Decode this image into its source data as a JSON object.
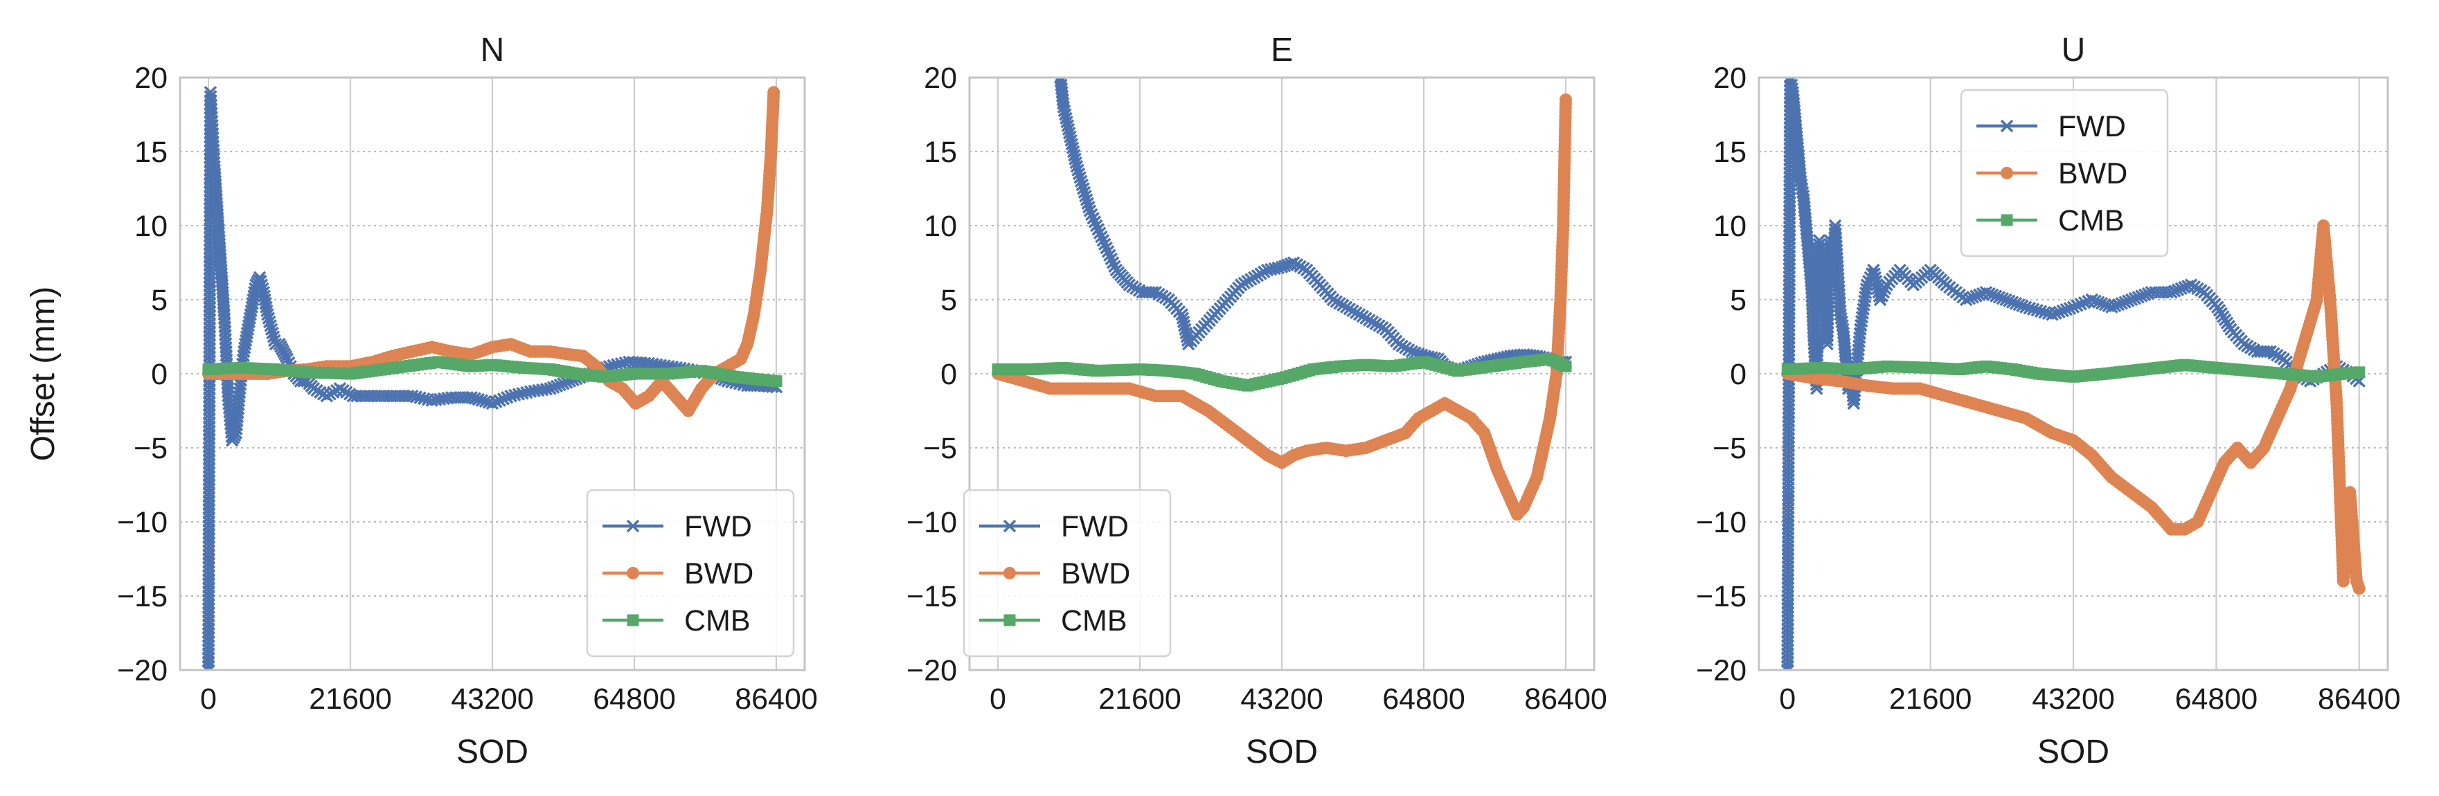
{
  "chart_data": [
    {
      "type": "line",
      "title": "N",
      "xlabel": "SOD",
      "ylabel": "Offset (mm)",
      "xlim": [
        -4320,
        90720
      ],
      "ylim": [
        -20,
        20
      ],
      "xticks": [
        0,
        21600,
        43200,
        64800,
        86400
      ],
      "xtick_labels": [
        "0",
        "21600",
        "43200",
        "64800",
        "86400"
      ],
      "yticks": [
        20,
        15,
        10,
        5,
        0,
        -5,
        -10,
        -15,
        -20
      ],
      "ytick_labels": [
        "20",
        "15",
        "10",
        "5",
        "0",
        "−5",
        "−10",
        "−15",
        "−20"
      ],
      "legend_loc": "lower-right",
      "series": [
        {
          "name": "FWD",
          "color": "#4c72b0",
          "marker": "x",
          "x": [
            0,
            300,
            600,
            900,
            1200,
            1500,
            1800,
            2100,
            2400,
            2700,
            3000,
            3600,
            4200,
            4800,
            5400,
            6000,
            6600,
            7200,
            7800,
            8400,
            9000,
            9600,
            10200,
            10800,
            11400,
            12000,
            13000,
            14000,
            15000,
            16000,
            18000,
            20000,
            22000,
            25000,
            28000,
            31000,
            34000,
            37000,
            40000,
            43200,
            46000,
            49000,
            52000,
            55000,
            58000,
            61000,
            64000,
            67000,
            70000,
            73000,
            76000,
            79000,
            82000,
            84000,
            86400
          ],
          "y": [
            -20,
            19,
            16.5,
            14,
            12,
            10,
            8,
            6,
            4,
            1.5,
            -1.5,
            -4.5,
            -4,
            -1,
            1.5,
            3,
            4.5,
            6,
            6.5,
            5.5,
            4,
            3,
            2,
            2,
            1.5,
            1,
            0,
            -0.5,
            -0.5,
            -1,
            -1.5,
            -1,
            -1.5,
            -1.5,
            -1.5,
            -1.5,
            -1.8,
            -1.6,
            -1.6,
            -2,
            -1.5,
            -1.2,
            -1,
            -0.5,
            0,
            0.5,
            0.8,
            0.7,
            0.5,
            0.3,
            0,
            -0.5,
            -0.8,
            -0.8,
            -0.9
          ]
        },
        {
          "name": "BWD",
          "color": "#dd8452",
          "marker": "o",
          "x": [
            0,
            3000,
            6000,
            9000,
            12000,
            15000,
            18000,
            21600,
            25000,
            28000,
            31000,
            34000,
            37000,
            40000,
            43200,
            46000,
            49000,
            52000,
            55000,
            57000,
            59000,
            61000,
            63000,
            65000,
            67000,
            69000,
            71000,
            73000,
            75000,
            77000,
            79000,
            81000,
            82000,
            83000,
            84000,
            85000,
            85600,
            86000
          ],
          "y": [
            0,
            0,
            0,
            0,
            0.2,
            0.3,
            0.5,
            0.5,
            0.8,
            1.2,
            1.5,
            1.8,
            1.5,
            1.3,
            1.8,
            2,
            1.5,
            1.5,
            1.3,
            1.2,
            0.5,
            -0.5,
            -1,
            -2,
            -1.5,
            -0.5,
            -1.5,
            -2.5,
            -1,
            0,
            0.5,
            1,
            2,
            4,
            7,
            11,
            15,
            19
          ]
        },
        {
          "name": "CMB",
          "color": "#55a868",
          "marker": "s",
          "x": [
            0,
            5000,
            10000,
            15000,
            21600,
            25000,
            30000,
            35000,
            40000,
            43200,
            48000,
            52000,
            56000,
            60000,
            64800,
            70000,
            75000,
            80000,
            84000,
            86400
          ],
          "y": [
            0.3,
            0.4,
            0.3,
            0.1,
            0,
            0.2,
            0.5,
            0.8,
            0.5,
            0.6,
            0.4,
            0.3,
            0,
            -0.2,
            0,
            0,
            0.2,
            -0.2,
            -0.4,
            -0.5
          ]
        }
      ]
    },
    {
      "type": "line",
      "title": "E",
      "xlabel": "SOD",
      "ylabel": "",
      "xlim": [
        -4320,
        90720
      ],
      "ylim": [
        -20,
        20
      ],
      "xticks": [
        0,
        21600,
        43200,
        64800,
        86400
      ],
      "xtick_labels": [
        "0",
        "21600",
        "43200",
        "64800",
        "86400"
      ],
      "yticks": [
        20,
        15,
        10,
        5,
        0,
        -5,
        -10,
        -15,
        -20
      ],
      "ytick_labels": [
        "20",
        "15",
        "10",
        "5",
        "0",
        "−5",
        "−10",
        "−15",
        "−20"
      ],
      "legend_loc": "lower-left",
      "series": [
        {
          "name": "FWD",
          "color": "#4c72b0",
          "marker": "x",
          "x": [
            9500,
            10000,
            11000,
            12000,
            13000,
            14000,
            15000,
            16000,
            17000,
            18000,
            19000,
            20000,
            22000,
            24000,
            26000,
            28000,
            29000,
            31000,
            33000,
            35000,
            37000,
            39000,
            41000,
            43200,
            45000,
            47000,
            49000,
            51000,
            53000,
            55000,
            57000,
            59000,
            61000,
            63000,
            65000,
            67000,
            68000,
            70000,
            72000,
            74000,
            76000,
            78000,
            80000,
            82000,
            84000,
            85000,
            86400
          ],
          "y": [
            20,
            18,
            16,
            14,
            12.5,
            11,
            10,
            9,
            8,
            7,
            6.5,
            6,
            5.5,
            5.5,
            5,
            4,
            2,
            3,
            4,
            5,
            6,
            6.5,
            7,
            7.2,
            7.5,
            7,
            6,
            5,
            4.5,
            4,
            3.5,
            3,
            2,
            1.5,
            1.2,
            1,
            0.5,
            0.2,
            0.5,
            0.8,
            1,
            1.2,
            1.3,
            1.2,
            1,
            0.8,
            0.8
          ]
        },
        {
          "name": "BWD",
          "color": "#dd8452",
          "marker": "o",
          "x": [
            0,
            4000,
            8000,
            12000,
            16000,
            20000,
            24000,
            28000,
            30000,
            32000,
            35000,
            38000,
            41000,
            43200,
            45000,
            47000,
            50000,
            53000,
            56000,
            59000,
            62000,
            64000,
            66000,
            68000,
            70000,
            72000,
            74000,
            76000,
            77000,
            78000,
            79000,
            80000,
            81000,
            82000,
            83000,
            84000,
            85000,
            85600,
            86000,
            86400
          ],
          "y": [
            0,
            -0.5,
            -1,
            -1,
            -1,
            -1,
            -1.5,
            -1.5,
            -2,
            -2.5,
            -3.5,
            -4.5,
            -5.5,
            -6,
            -5.5,
            -5.2,
            -5,
            -5.2,
            -5,
            -4.5,
            -4,
            -3,
            -2.5,
            -2,
            -2.5,
            -3,
            -4,
            -6.5,
            -7.5,
            -8.5,
            -9.5,
            -9,
            -8,
            -7,
            -5,
            -3,
            0,
            5,
            10,
            18.5
          ]
        },
        {
          "name": "CMB",
          "color": "#55a868",
          "marker": "s",
          "x": [
            0,
            5000,
            10000,
            15000,
            21600,
            26000,
            30000,
            34000,
            38000,
            43200,
            48000,
            52000,
            56000,
            60000,
            64800,
            70000,
            75000,
            80000,
            84000,
            86400
          ],
          "y": [
            0.3,
            0.3,
            0.4,
            0.2,
            0.3,
            0.2,
            0,
            -0.5,
            -0.8,
            -0.3,
            0.3,
            0.5,
            0.6,
            0.5,
            0.8,
            0.2,
            0.5,
            0.8,
            1,
            0.5
          ]
        }
      ]
    },
    {
      "type": "line",
      "title": "U",
      "xlabel": "SOD",
      "ylabel": "",
      "xlim": [
        -4320,
        90720
      ],
      "ylim": [
        -20,
        20
      ],
      "xticks": [
        0,
        21600,
        43200,
        64800,
        86400
      ],
      "xtick_labels": [
        "0",
        "21600",
        "43200",
        "64800",
        "86400"
      ],
      "yticks": [
        20,
        15,
        10,
        5,
        0,
        -5,
        -10,
        -15,
        -20
      ],
      "ytick_labels": [
        "20",
        "15",
        "10",
        "5",
        "0",
        "−5",
        "−10",
        "−15",
        "−20"
      ],
      "legend_loc": "upper-center",
      "series": [
        {
          "name": "FWD",
          "color": "#4c72b0",
          "marker": "x",
          "x": [
            0,
            400,
            800,
            1200,
            1600,
            2000,
            2400,
            2800,
            3200,
            3600,
            4000,
            4400,
            4800,
            5200,
            5600,
            6000,
            6400,
            6800,
            7200,
            7600,
            8000,
            8400,
            8800,
            9200,
            9600,
            10000,
            11000,
            12000,
            13000,
            14000,
            15000,
            17000,
            19000,
            21600,
            24000,
            27000,
            30000,
            33000,
            36000,
            40000,
            43200,
            46000,
            49000,
            52000,
            55000,
            58000,
            61000,
            63000,
            65000,
            67000,
            69000,
            71000,
            73000,
            75000,
            77000,
            79000,
            81000,
            83000,
            85000,
            86400
          ],
          "y": [
            -20,
            20,
            19,
            17,
            15,
            13,
            12,
            10,
            8,
            6,
            2,
            -1,
            9,
            4,
            8,
            2,
            9,
            6,
            10,
            7,
            4,
            3,
            1,
            -1,
            0,
            -2,
            3,
            6,
            7,
            5,
            6,
            7,
            6,
            7,
            6,
            5,
            5.5,
            5,
            4.5,
            4,
            4.5,
            5,
            4.5,
            5,
            5.5,
            5.5,
            6,
            5.5,
            4.5,
            3,
            2,
            1.5,
            1.5,
            1,
            0,
            -0.5,
            0,
            0.5,
            0,
            -0.5
          ]
        },
        {
          "name": "BWD",
          "color": "#dd8452",
          "marker": "o",
          "x": [
            0,
            4000,
            8000,
            12000,
            16000,
            20000,
            24000,
            28000,
            32000,
            36000,
            40000,
            43200,
            46000,
            49000,
            52000,
            55000,
            58000,
            60000,
            62000,
            64000,
            66000,
            68000,
            70000,
            72000,
            74000,
            76000,
            78000,
            80000,
            81000,
            82000,
            83000,
            84000,
            85000,
            86000,
            86400
          ],
          "y": [
            0,
            -0.3,
            -0.5,
            -0.8,
            -1,
            -1,
            -1.5,
            -2,
            -2.5,
            -3,
            -4,
            -4.5,
            -5.5,
            -7,
            -8,
            -9,
            -10.5,
            -10.5,
            -10,
            -8,
            -6,
            -5,
            -6,
            -5,
            -3,
            -1,
            2,
            5,
            10,
            5,
            -2,
            -14,
            -8,
            -14,
            -14.5
          ]
        },
        {
          "name": "CMB",
          "color": "#55a868",
          "marker": "s",
          "x": [
            0,
            5000,
            10000,
            15000,
            21600,
            26000,
            30000,
            34000,
            38000,
            43200,
            48000,
            52000,
            56000,
            60000,
            64800,
            70000,
            75000,
            80000,
            84000,
            86400
          ],
          "y": [
            0.3,
            0.4,
            0.3,
            0.5,
            0.4,
            0.3,
            0.5,
            0.3,
            0,
            -0.2,
            0,
            0.2,
            0.4,
            0.6,
            0.4,
            0.2,
            0,
            -0.2,
            0,
            0.1
          ]
        }
      ]
    }
  ]
}
